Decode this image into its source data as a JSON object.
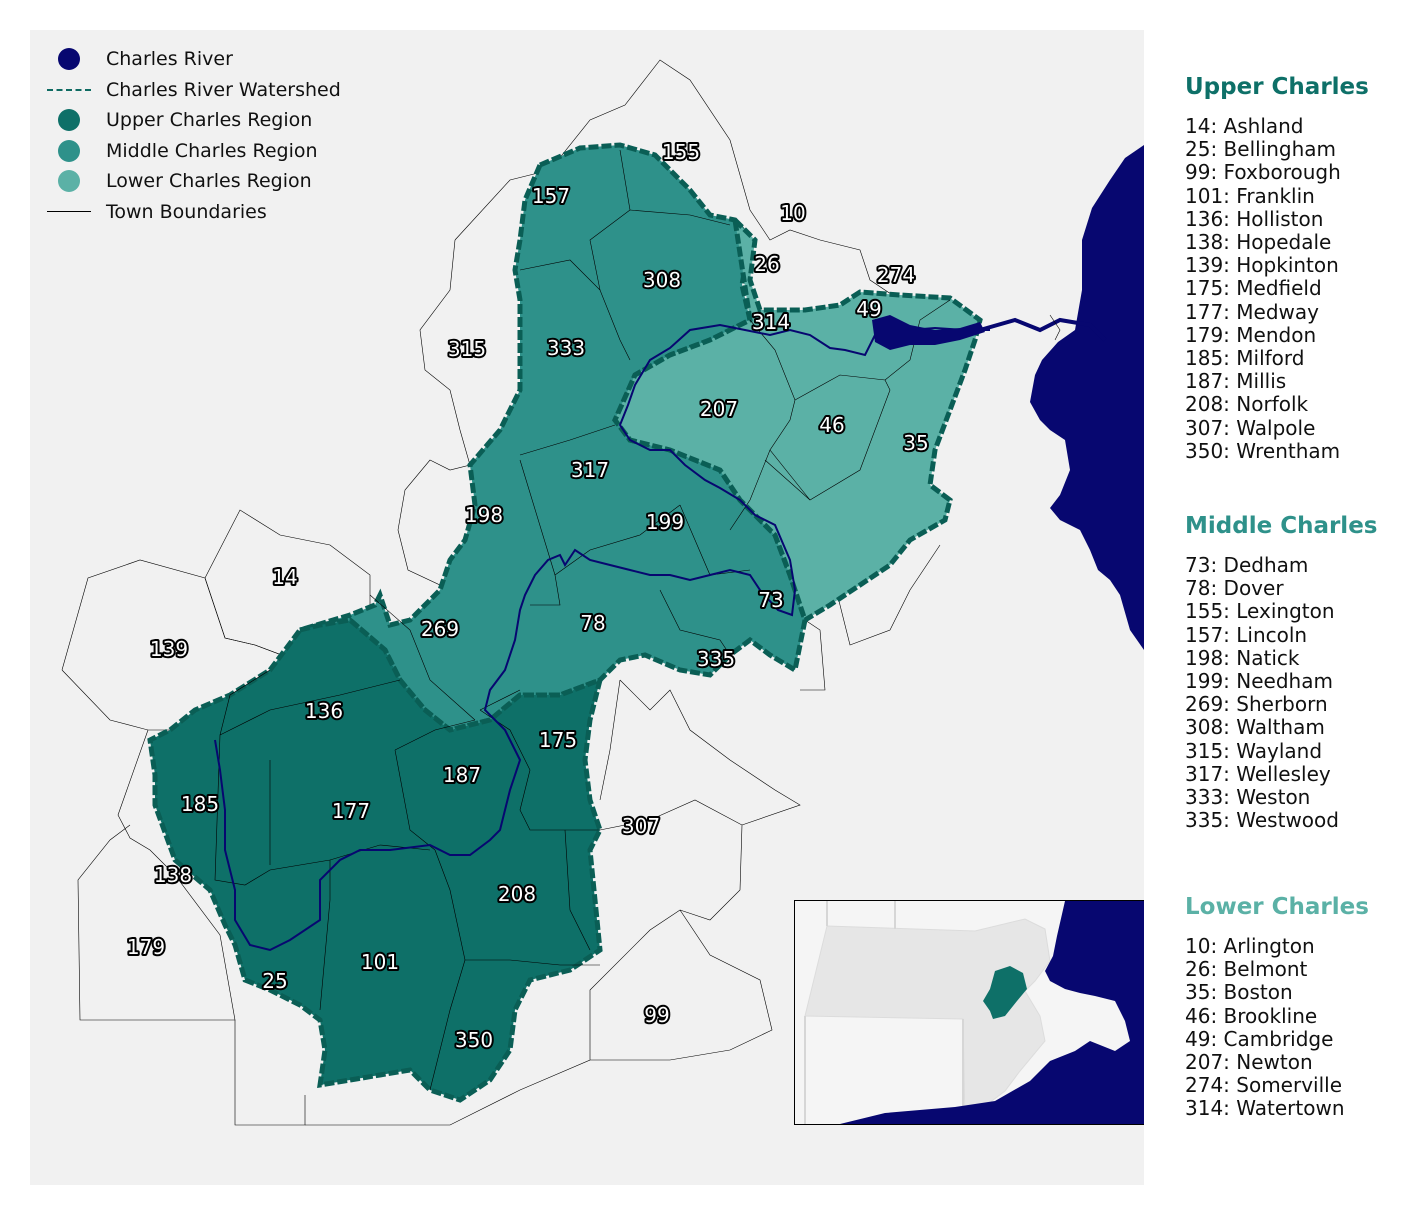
{
  "colors": {
    "river": "#070770",
    "upper": "#0e7068",
    "middle": "#2e918a",
    "lower": "#5bb1a6",
    "watershed": "#0a5e55",
    "background": "#f1f1f1"
  },
  "legend": [
    {
      "label": "Charles River",
      "symbol": "dot",
      "color": "#070770"
    },
    {
      "label": "Charles River Watershed",
      "symbol": "dash",
      "color": "#0e6b62"
    },
    {
      "label": "Upper Charles Region",
      "symbol": "dot",
      "color": "#0e7068"
    },
    {
      "label": "Middle Charles Region",
      "symbol": "dot",
      "color": "#2e918a"
    },
    {
      "label": "Lower Charles Region",
      "symbol": "dot",
      "color": "#5bb1a6"
    },
    {
      "label": "Town Boundaries",
      "symbol": "line",
      "color": "#000000"
    }
  ],
  "regions": {
    "upper": {
      "title": "Upper Charles",
      "color": "#0e7068",
      "towns": [
        "14: Ashland",
        "25: Bellingham",
        "99: Foxborough",
        "101: Franklin",
        "136: Holliston",
        "138: Hopedale",
        "139: Hopkinton",
        "175: Medfield",
        "177: Medway",
        "179: Mendon",
        "185: Milford",
        "187: Millis",
        "208: Norfolk",
        "307: Walpole",
        "350: Wrentham"
      ]
    },
    "middle": {
      "title": "Middle Charles",
      "color": "#2e918a",
      "towns": [
        "73: Dedham",
        "78: Dover",
        "155: Lexington",
        "157: Lincoln",
        "198: Natick",
        "199: Needham",
        "269: Sherborn",
        "308: Waltham",
        "315: Wayland",
        "317: Wellesley",
        "333: Weston",
        "335: Westwood"
      ]
    },
    "lower": {
      "title": "Lower Charles",
      "color": "#5bb1a6",
      "towns": [
        "10: Arlington",
        "26: Belmont",
        "35: Boston",
        "46: Brookline",
        "49: Cambridge",
        "207: Newton",
        "274: Somerville",
        "314: Watertown"
      ]
    }
  },
  "town_labels": [
    "155",
    "157",
    "10",
    "308",
    "26",
    "274",
    "49",
    "314",
    "315",
    "333",
    "207",
    "46",
    "35",
    "317",
    "199",
    "198",
    "14",
    "139",
    "269",
    "78",
    "73",
    "335",
    "136",
    "175",
    "187",
    "185",
    "177",
    "307",
    "138",
    "208",
    "179",
    "101",
    "25",
    "350",
    "99"
  ]
}
